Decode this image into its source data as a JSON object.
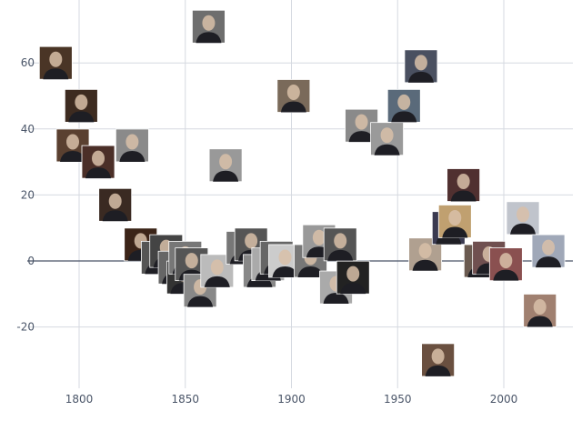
{
  "chart_data": {
    "type": "scatter",
    "title": "",
    "xlabel": "",
    "ylabel": "",
    "xlim": [
      1775,
      2033
    ],
    "ylim": [
      -37,
      79
    ],
    "grid": true,
    "x_ticks": [
      1800,
      1850,
      1900,
      1950,
      2000
    ],
    "y_ticks": [
      60,
      40,
      20,
      0,
      -20
    ],
    "y_tick_labels": [
      "60",
      "40",
      "20",
      "0",
      "-20"
    ],
    "x_tick_labels": [
      "1800",
      "1850",
      "1900",
      "1950",
      "2000"
    ],
    "marker": "portrait-image",
    "colors": {
      "grid": "#d5d9e0",
      "zero_line": "#4a5568",
      "axis_text": "#4a5568"
    },
    "points": [
      {
        "x": 1789,
        "y": 60,
        "tone": "#4a3526"
      },
      {
        "x": 1797,
        "y": 35,
        "tone": "#5a4030"
      },
      {
        "x": 1801,
        "y": 47,
        "tone": "#3d2b20"
      },
      {
        "x": 1809,
        "y": 30,
        "tone": "#4b2f28"
      },
      {
        "x": 1817,
        "y": 17,
        "tone": "#3a2a22"
      },
      {
        "x": 1825,
        "y": 35,
        "tone": "#8a8a8a"
      },
      {
        "x": 1829,
        "y": 5,
        "tone": "#3b2418"
      },
      {
        "x": 1837,
        "y": 1,
        "tone": "#555"
      },
      {
        "x": 1841,
        "y": 3,
        "tone": "#444"
      },
      {
        "x": 1845,
        "y": -2,
        "tone": "#666"
      },
      {
        "x": 1849,
        "y": -5,
        "tone": "#333"
      },
      {
        "x": 1850,
        "y": 1,
        "tone": "#777"
      },
      {
        "x": 1853,
        "y": -1,
        "tone": "#555"
      },
      {
        "x": 1857,
        "y": -9,
        "tone": "#888"
      },
      {
        "x": 1861,
        "y": 71,
        "tone": "#6e6e6e"
      },
      {
        "x": 1865,
        "y": -3,
        "tone": "#bbb"
      },
      {
        "x": 1869,
        "y": 29,
        "tone": "#999"
      },
      {
        "x": 1877,
        "y": 4,
        "tone": "#777"
      },
      {
        "x": 1881,
        "y": 5,
        "tone": "#555"
      },
      {
        "x": 1885,
        "y": -3,
        "tone": "#888"
      },
      {
        "x": 1889,
        "y": -1,
        "tone": "#aaa"
      },
      {
        "x": 1893,
        "y": 1,
        "tone": "#666"
      },
      {
        "x": 1897,
        "y": 0,
        "tone": "#ccc"
      },
      {
        "x": 1901,
        "y": 50,
        "tone": "#7a6a5a"
      },
      {
        "x": 1909,
        "y": 0,
        "tone": "#777"
      },
      {
        "x": 1913,
        "y": 6,
        "tone": "#999"
      },
      {
        "x": 1921,
        "y": -8,
        "tone": "#aaa"
      },
      {
        "x": 1923,
        "y": 5,
        "tone": "#555"
      },
      {
        "x": 1929,
        "y": -5,
        "tone": "#222"
      },
      {
        "x": 1933,
        "y": 41,
        "tone": "#8a8a8a"
      },
      {
        "x": 1945,
        "y": 37,
        "tone": "#9a9a9a"
      },
      {
        "x": 1953,
        "y": 47,
        "tone": "#5a6a7a"
      },
      {
        "x": 1961,
        "y": 59,
        "tone": "#4a5060"
      },
      {
        "x": 1963,
        "y": 2,
        "tone": "#b0a090"
      },
      {
        "x": 1969,
        "y": -30,
        "tone": "#6a5040"
      },
      {
        "x": 1974,
        "y": 10,
        "tone": "#3a3a50"
      },
      {
        "x": 1977,
        "y": 12,
        "tone": "#c0a070"
      },
      {
        "x": 1981,
        "y": 23,
        "tone": "#503030"
      },
      {
        "x": 1989,
        "y": 0,
        "tone": "#6a5a50"
      },
      {
        "x": 1993,
        "y": 1,
        "tone": "#705050"
      },
      {
        "x": 2001,
        "y": -1,
        "tone": "#8a5050"
      },
      {
        "x": 2009,
        "y": 13,
        "tone": "#c0c4cc"
      },
      {
        "x": 2017,
        "y": -15,
        "tone": "#a08070"
      },
      {
        "x": 2021,
        "y": 3,
        "tone": "#a0a8b8"
      }
    ]
  }
}
